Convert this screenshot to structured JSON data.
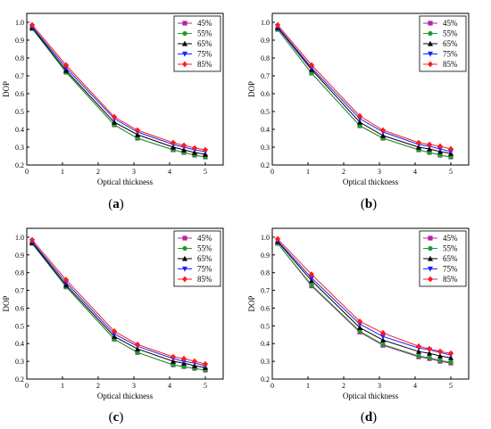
{
  "colors": {
    "45%": "#b0279c",
    "55%": "#1f9a2d",
    "65%": "#000000",
    "75%": "#1f1fff",
    "85%": "#ff1a1a"
  },
  "markers": {
    "45%": "square",
    "55%": "circle",
    "65%": "triangle-up",
    "75%": "triangle-down",
    "85%": "diamond"
  },
  "chart_data": [
    {
      "type": "line",
      "panel_label": "a",
      "xlabel": "Optical thickness",
      "ylabel": "DOP",
      "xlim": [
        0,
        5.5
      ],
      "ylim": [
        0.2,
        1.05
      ],
      "xticks": [
        0,
        1,
        2,
        3,
        4,
        5
      ],
      "yticks": [
        0.2,
        0.3,
        0.4,
        0.5,
        0.6,
        0.7,
        0.8,
        0.9,
        1.0
      ],
      "ytick_labels": [
        "0.2",
        "0.3",
        "0.4",
        "0.5",
        "0.6",
        "0.7",
        "0.8",
        "0.9",
        "1.0"
      ],
      "legend_position": "top-right",
      "x": [
        0.15,
        1.1,
        2.45,
        3.1,
        4.1,
        4.4,
        4.7,
        5.0
      ],
      "series": [
        {
          "name": "45%",
          "values": [
            0.965,
            0.72,
            0.425,
            0.35,
            0.285,
            0.27,
            0.255,
            0.245
          ]
        },
        {
          "name": "55%",
          "values": [
            0.965,
            0.72,
            0.425,
            0.35,
            0.285,
            0.27,
            0.255,
            0.245
          ]
        },
        {
          "name": "65%",
          "values": [
            0.97,
            0.73,
            0.44,
            0.37,
            0.3,
            0.285,
            0.27,
            0.26
          ]
        },
        {
          "name": "75%",
          "values": [
            0.975,
            0.745,
            0.46,
            0.385,
            0.315,
            0.3,
            0.285,
            0.275
          ]
        },
        {
          "name": "85%",
          "values": [
            0.985,
            0.76,
            0.47,
            0.395,
            0.325,
            0.31,
            0.295,
            0.285
          ]
        }
      ]
    },
    {
      "type": "line",
      "panel_label": "b",
      "xlabel": "Optical thickness",
      "ylabel": "DOP",
      "xlim": [
        0,
        5.5
      ],
      "ylim": [
        0.2,
        1.05
      ],
      "xticks": [
        0,
        1,
        2,
        3,
        4,
        5
      ],
      "yticks": [
        0.2,
        0.3,
        0.4,
        0.5,
        0.6,
        0.7,
        0.8,
        0.9,
        1.0
      ],
      "ytick_labels": [
        "0.2",
        "0.3",
        "0.4",
        "0.5",
        "0.6",
        "0.7",
        "0.8",
        "0.9",
        "1.0"
      ],
      "legend_position": "top-right",
      "x": [
        0.15,
        1.1,
        2.45,
        3.1,
        4.1,
        4.4,
        4.7,
        5.0
      ],
      "series": [
        {
          "name": "45%",
          "values": [
            0.96,
            0.715,
            0.42,
            0.35,
            0.285,
            0.27,
            0.255,
            0.245
          ]
        },
        {
          "name": "55%",
          "values": [
            0.96,
            0.715,
            0.42,
            0.35,
            0.285,
            0.27,
            0.255,
            0.245
          ]
        },
        {
          "name": "65%",
          "values": [
            0.97,
            0.735,
            0.44,
            0.365,
            0.3,
            0.29,
            0.275,
            0.265
          ]
        },
        {
          "name": "75%",
          "values": [
            0.975,
            0.745,
            0.46,
            0.385,
            0.315,
            0.305,
            0.29,
            0.275
          ]
        },
        {
          "name": "85%",
          "values": [
            0.985,
            0.76,
            0.475,
            0.395,
            0.325,
            0.315,
            0.305,
            0.29
          ]
        }
      ]
    },
    {
      "type": "line",
      "panel_label": "c",
      "xlabel": "Optical thickness",
      "ylabel": "DOP",
      "xlim": [
        0,
        5.5
      ],
      "ylim": [
        0.2,
        1.05
      ],
      "xticks": [
        0,
        1,
        2,
        3,
        4,
        5
      ],
      "yticks": [
        0.2,
        0.3,
        0.4,
        0.5,
        0.6,
        0.7,
        0.8,
        0.9,
        1.0
      ],
      "ytick_labels": [
        "0.2",
        "0.3",
        "0.4",
        "0.5",
        "0.6",
        "0.7",
        "0.8",
        "0.9",
        "1.0"
      ],
      "legend_position": "top-right",
      "x": [
        0.15,
        1.1,
        2.45,
        3.1,
        4.1,
        4.4,
        4.7,
        5.0
      ],
      "series": [
        {
          "name": "45%",
          "values": [
            0.965,
            0.72,
            0.425,
            0.35,
            0.28,
            0.27,
            0.26,
            0.25
          ]
        },
        {
          "name": "55%",
          "values": [
            0.965,
            0.72,
            0.425,
            0.35,
            0.28,
            0.27,
            0.26,
            0.25
          ]
        },
        {
          "name": "65%",
          "values": [
            0.97,
            0.73,
            0.44,
            0.37,
            0.3,
            0.29,
            0.275,
            0.265
          ]
        },
        {
          "name": "75%",
          "values": [
            0.975,
            0.745,
            0.455,
            0.385,
            0.315,
            0.3,
            0.29,
            0.275
          ]
        },
        {
          "name": "85%",
          "values": [
            0.985,
            0.76,
            0.47,
            0.395,
            0.325,
            0.315,
            0.3,
            0.285
          ]
        }
      ]
    },
    {
      "type": "line",
      "panel_label": "d",
      "xlabel": "Optical thickness",
      "ylabel": "DOP",
      "xlim": [
        0,
        5.5
      ],
      "ylim": [
        0.2,
        1.05
      ],
      "xticks": [
        0,
        1,
        2,
        3,
        4,
        5
      ],
      "yticks": [
        0.2,
        0.3,
        0.4,
        0.5,
        0.6,
        0.7,
        0.8,
        0.9,
        1.0
      ],
      "ytick_labels": [
        "0.2",
        "0.3",
        "0.4",
        "0.5",
        "0.6",
        "0.7",
        "0.8",
        "0.9",
        "1.0"
      ],
      "legend_position": "top-right",
      "x": [
        0.15,
        1.1,
        2.45,
        3.1,
        4.1,
        4.4,
        4.7,
        5.0
      ],
      "series": [
        {
          "name": "45%",
          "values": [
            0.965,
            0.725,
            0.465,
            0.39,
            0.325,
            0.315,
            0.3,
            0.29
          ]
        },
        {
          "name": "55%",
          "values": [
            0.965,
            0.73,
            0.47,
            0.395,
            0.33,
            0.32,
            0.305,
            0.295
          ]
        },
        {
          "name": "65%",
          "values": [
            0.975,
            0.755,
            0.49,
            0.42,
            0.355,
            0.345,
            0.33,
            0.32
          ]
        },
        {
          "name": "75%",
          "values": [
            0.98,
            0.77,
            0.51,
            0.44,
            0.375,
            0.365,
            0.35,
            0.335
          ]
        },
        {
          "name": "85%",
          "values": [
            0.99,
            0.79,
            0.525,
            0.46,
            0.385,
            0.37,
            0.355,
            0.345
          ]
        }
      ]
    }
  ]
}
